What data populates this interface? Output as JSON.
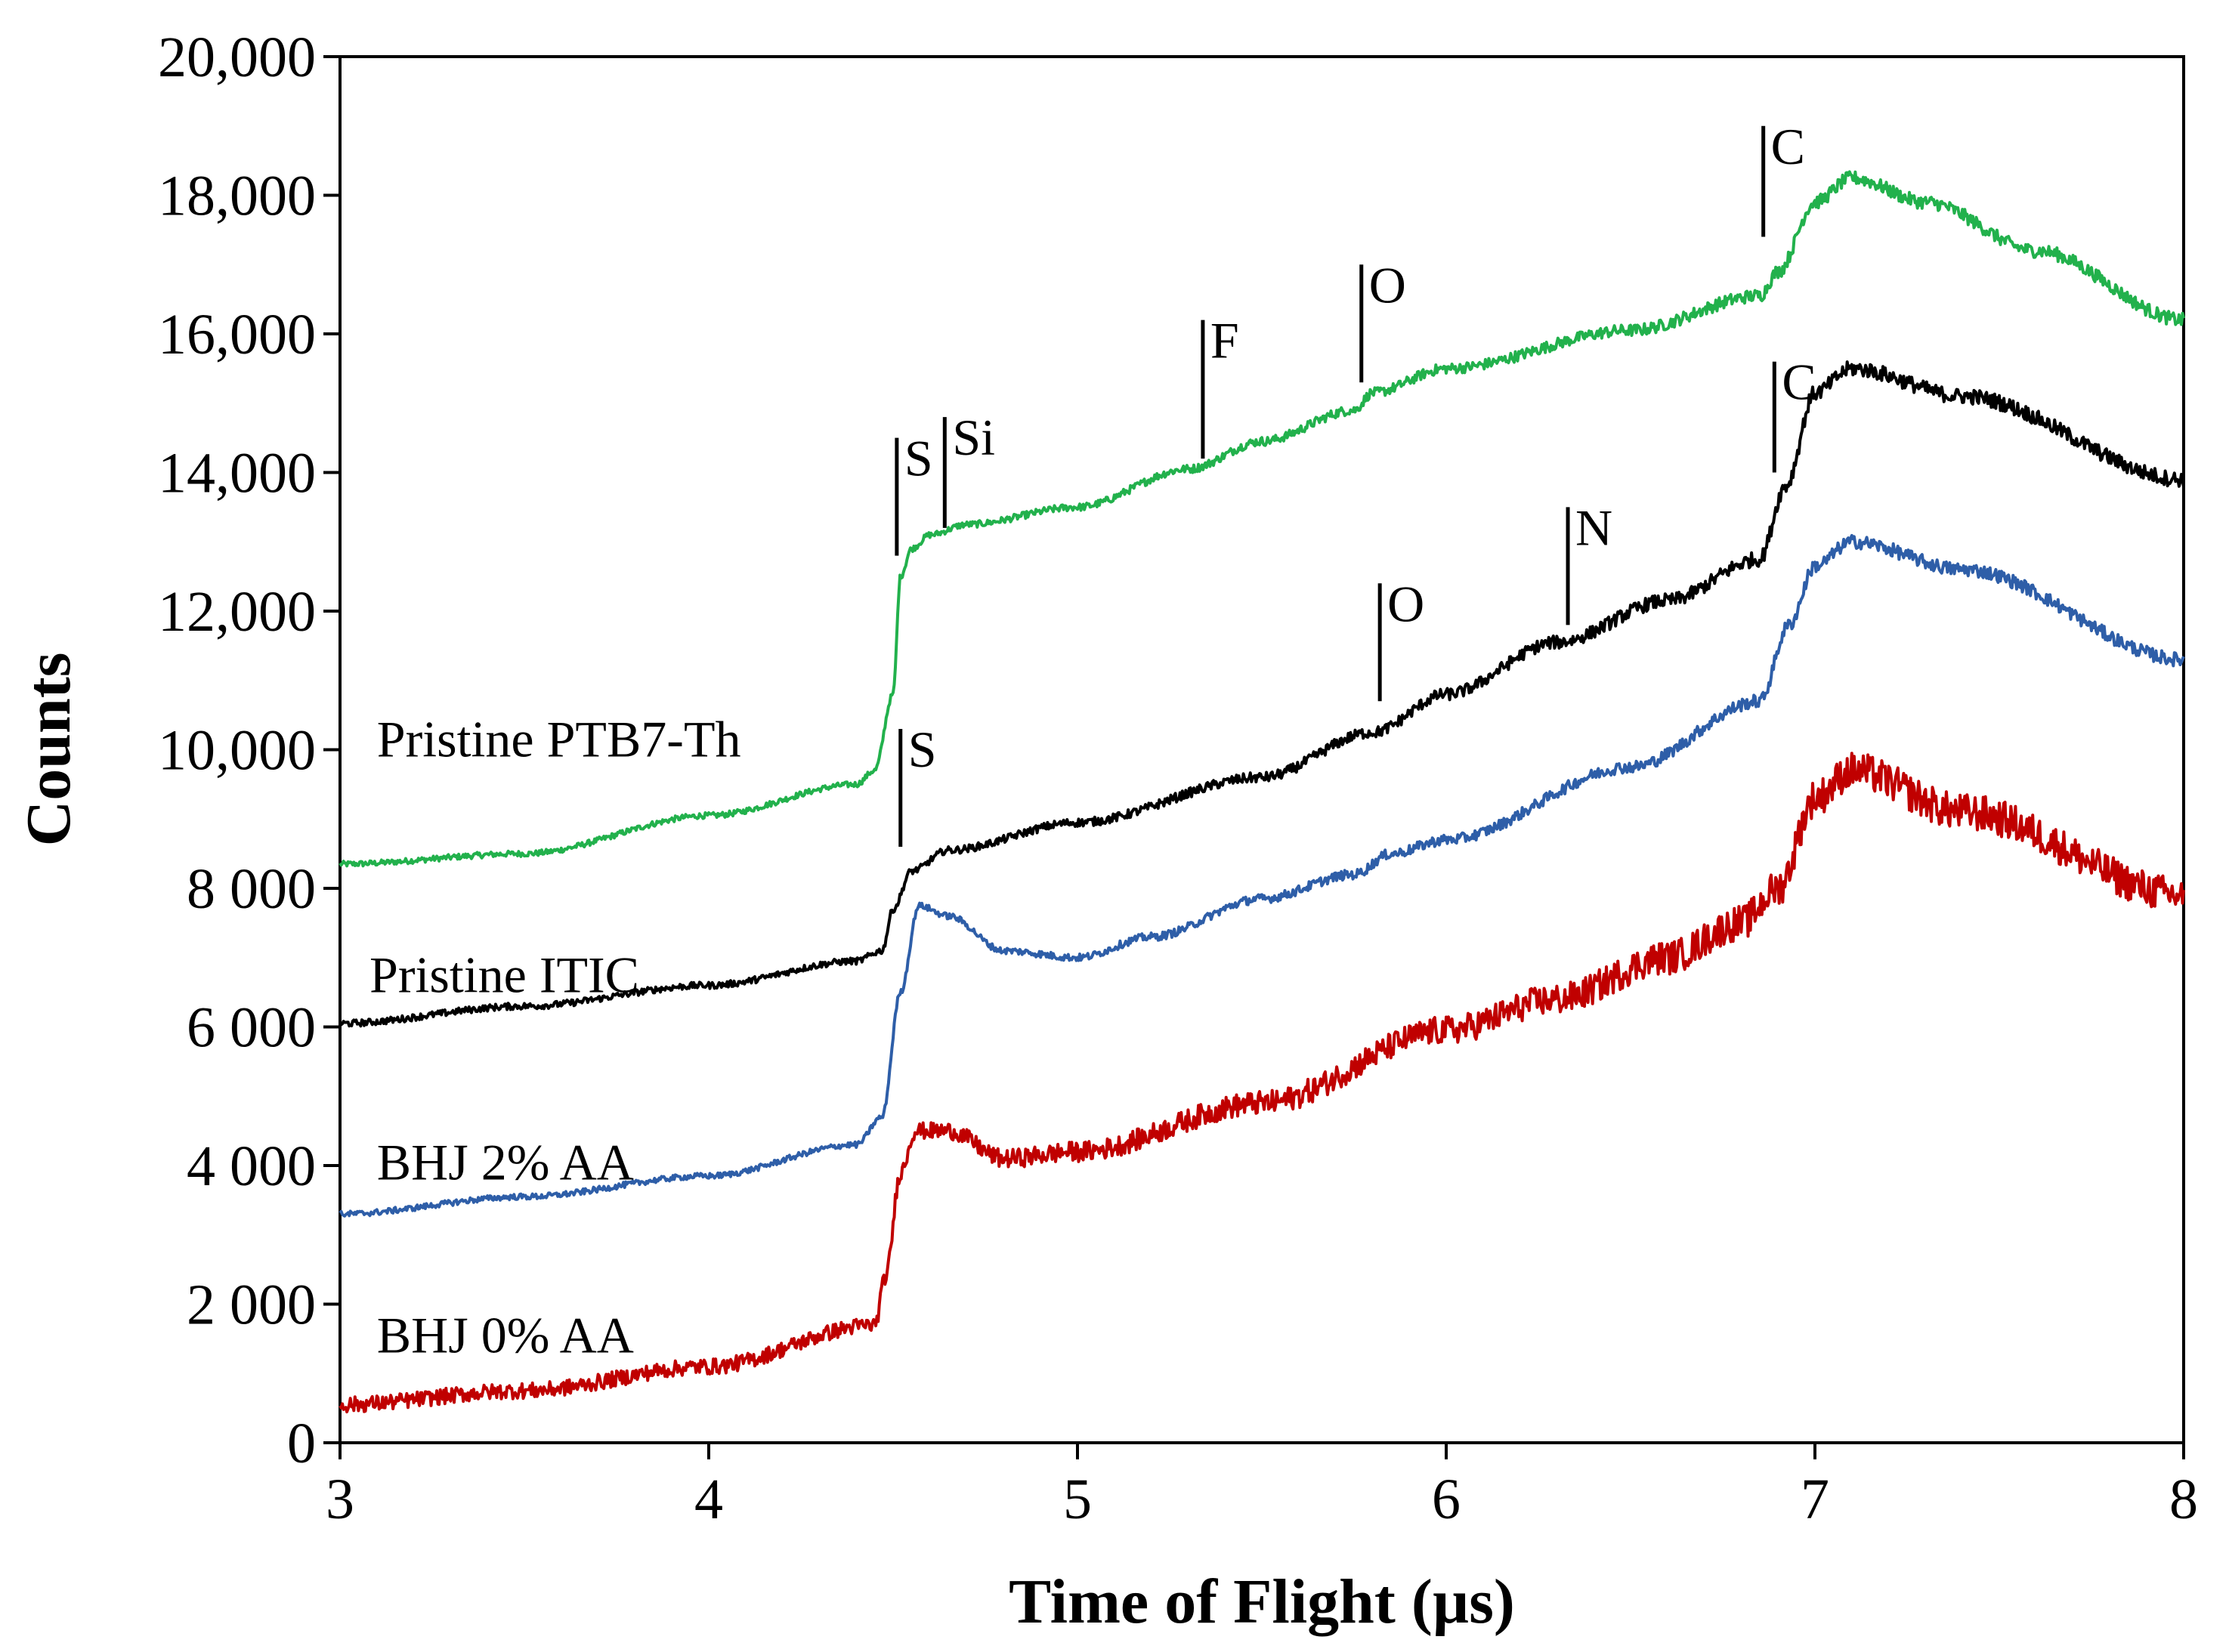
{
  "chart_data": {
    "type": "line",
    "title": "",
    "xlabel": "Time of Flight (µs)",
    "ylabel": "Counts",
    "xlim": [
      3,
      8
    ],
    "ylim": [
      0,
      20000
    ],
    "grid": false,
    "x_ticks": [
      3,
      4,
      5,
      6,
      7,
      8
    ],
    "x_tick_labels": [
      "3",
      "4",
      "5",
      "6",
      "7",
      "8"
    ],
    "y_ticks": [
      0,
      2000,
      4000,
      6000,
      8000,
      10000,
      12000,
      14000,
      16000,
      18000,
      20000
    ],
    "y_tick_labels": [
      "0",
      "2 000",
      "4 000",
      "6 000",
      "8 000",
      "10,000",
      "12,000",
      "14,000",
      "16,000",
      "18,000",
      "20,000"
    ],
    "series": [
      {
        "name": "Pristine PTB7-Th",
        "color": "#22b14c",
        "noise": 70,
        "label_at": [
          3.1,
          9900
        ],
        "points": [
          [
            3.0,
            8350
          ],
          [
            3.5,
            8500
          ],
          [
            4.0,
            9050
          ],
          [
            4.4,
            9500
          ],
          [
            4.45,
            9700
          ],
          [
            4.5,
            10800
          ],
          [
            4.52,
            12500
          ],
          [
            4.55,
            12900
          ],
          [
            4.6,
            13100
          ],
          [
            4.7,
            13250
          ],
          [
            5.0,
            13500
          ],
          [
            5.3,
            14050
          ],
          [
            5.5,
            14450
          ],
          [
            5.75,
            14900
          ],
          [
            5.8,
            15150
          ],
          [
            6.0,
            15500
          ],
          [
            6.5,
            16050
          ],
          [
            6.85,
            16550
          ],
          [
            6.9,
            16900
          ],
          [
            7.0,
            17900
          ],
          [
            7.1,
            18250
          ],
          [
            7.3,
            17900
          ],
          [
            7.6,
            17200
          ],
          [
            8.0,
            16200
          ]
        ]
      },
      {
        "name": "Pristine ITIC",
        "color": "#000000",
        "noise": 80,
        "label_at": [
          3.08,
          6500
        ],
        "points": [
          [
            3.0,
            6050
          ],
          [
            3.5,
            6300
          ],
          [
            4.0,
            6600
          ],
          [
            4.4,
            6950
          ],
          [
            4.47,
            7100
          ],
          [
            4.5,
            7700
          ],
          [
            4.55,
            8250
          ],
          [
            4.65,
            8550
          ],
          [
            5.0,
            8950
          ],
          [
            5.5,
            9600
          ],
          [
            5.8,
            10250
          ],
          [
            6.0,
            10800
          ],
          [
            6.3,
            11550
          ],
          [
            6.6,
            12150
          ],
          [
            6.85,
            12750
          ],
          [
            6.92,
            13800
          ],
          [
            7.0,
            15150
          ],
          [
            7.1,
            15500
          ],
          [
            7.4,
            15100
          ],
          [
            8.0,
            13900
          ]
        ]
      },
      {
        "name": "BHJ 2% AA",
        "color": "#2e5ea8",
        "noise": 70,
        "label_at": [
          3.1,
          3800
        ],
        "points": [
          [
            3.0,
            3300
          ],
          [
            3.5,
            3550
          ],
          [
            4.0,
            3850
          ],
          [
            4.4,
            4300
          ],
          [
            4.47,
            4700
          ],
          [
            4.52,
            6500
          ],
          [
            4.57,
            7750
          ],
          [
            4.65,
            7600
          ],
          [
            4.8,
            7100
          ],
          [
            5.0,
            7000
          ],
          [
            5.2,
            7300
          ],
          [
            5.5,
            7850
          ],
          [
            5.75,
            8200
          ],
          [
            5.85,
            8500
          ],
          [
            6.0,
            8700
          ],
          [
            6.5,
            9750
          ],
          [
            6.85,
            10700
          ],
          [
            6.93,
            11800
          ],
          [
            7.0,
            12650
          ],
          [
            7.1,
            13000
          ],
          [
            7.4,
            12600
          ],
          [
            8.0,
            11300
          ]
        ]
      },
      {
        "name": "BHJ 0% AA",
        "color": "#c00000",
        "noise": 190,
        "label_at": [
          3.1,
          1300
        ],
        "points": [
          [
            3.0,
            550
          ],
          [
            3.5,
            750
          ],
          [
            4.0,
            1100
          ],
          [
            4.45,
            1700
          ],
          [
            4.48,
            2400
          ],
          [
            4.52,
            3900
          ],
          [
            4.56,
            4500
          ],
          [
            4.65,
            4500
          ],
          [
            4.8,
            4100
          ],
          [
            5.0,
            4200
          ],
          [
            5.5,
            4900
          ],
          [
            6.0,
            5950
          ],
          [
            6.3,
            6400
          ],
          [
            6.6,
            7000
          ],
          [
            6.8,
            7500
          ],
          [
            6.9,
            8000
          ],
          [
            7.0,
            9300
          ],
          [
            7.1,
            9700
          ],
          [
            7.4,
            9100
          ],
          [
            8.0,
            7900
          ]
        ]
      }
    ],
    "annotations": [
      {
        "text": "S",
        "x": 4.51,
        "y0": 12800,
        "y1": 14500,
        "color": "#000000"
      },
      {
        "text": "Si",
        "x": 4.64,
        "y0": 13200,
        "y1": 14800,
        "color": "#000000"
      },
      {
        "text": "F",
        "x": 5.34,
        "y0": 14200,
        "y1": 16200,
        "color": "#000000"
      },
      {
        "text": "O",
        "x": 5.77,
        "y0": 15300,
        "y1": 17000,
        "color": "#000000"
      },
      {
        "text": "C",
        "x": 6.86,
        "y0": 17400,
        "y1": 19000,
        "color": "#000000"
      },
      {
        "text": "S",
        "x": 4.52,
        "y0": 8600,
        "y1": 10300,
        "color": "#000000"
      },
      {
        "text": "O",
        "x": 5.82,
        "y0": 10700,
        "y1": 12400,
        "color": "#000000"
      },
      {
        "text": "N",
        "x": 6.33,
        "y0": 11800,
        "y1": 13500,
        "color": "#000000"
      },
      {
        "text": "C",
        "x": 6.89,
        "y0": 14000,
        "y1": 15600,
        "color": "#000000"
      }
    ]
  }
}
